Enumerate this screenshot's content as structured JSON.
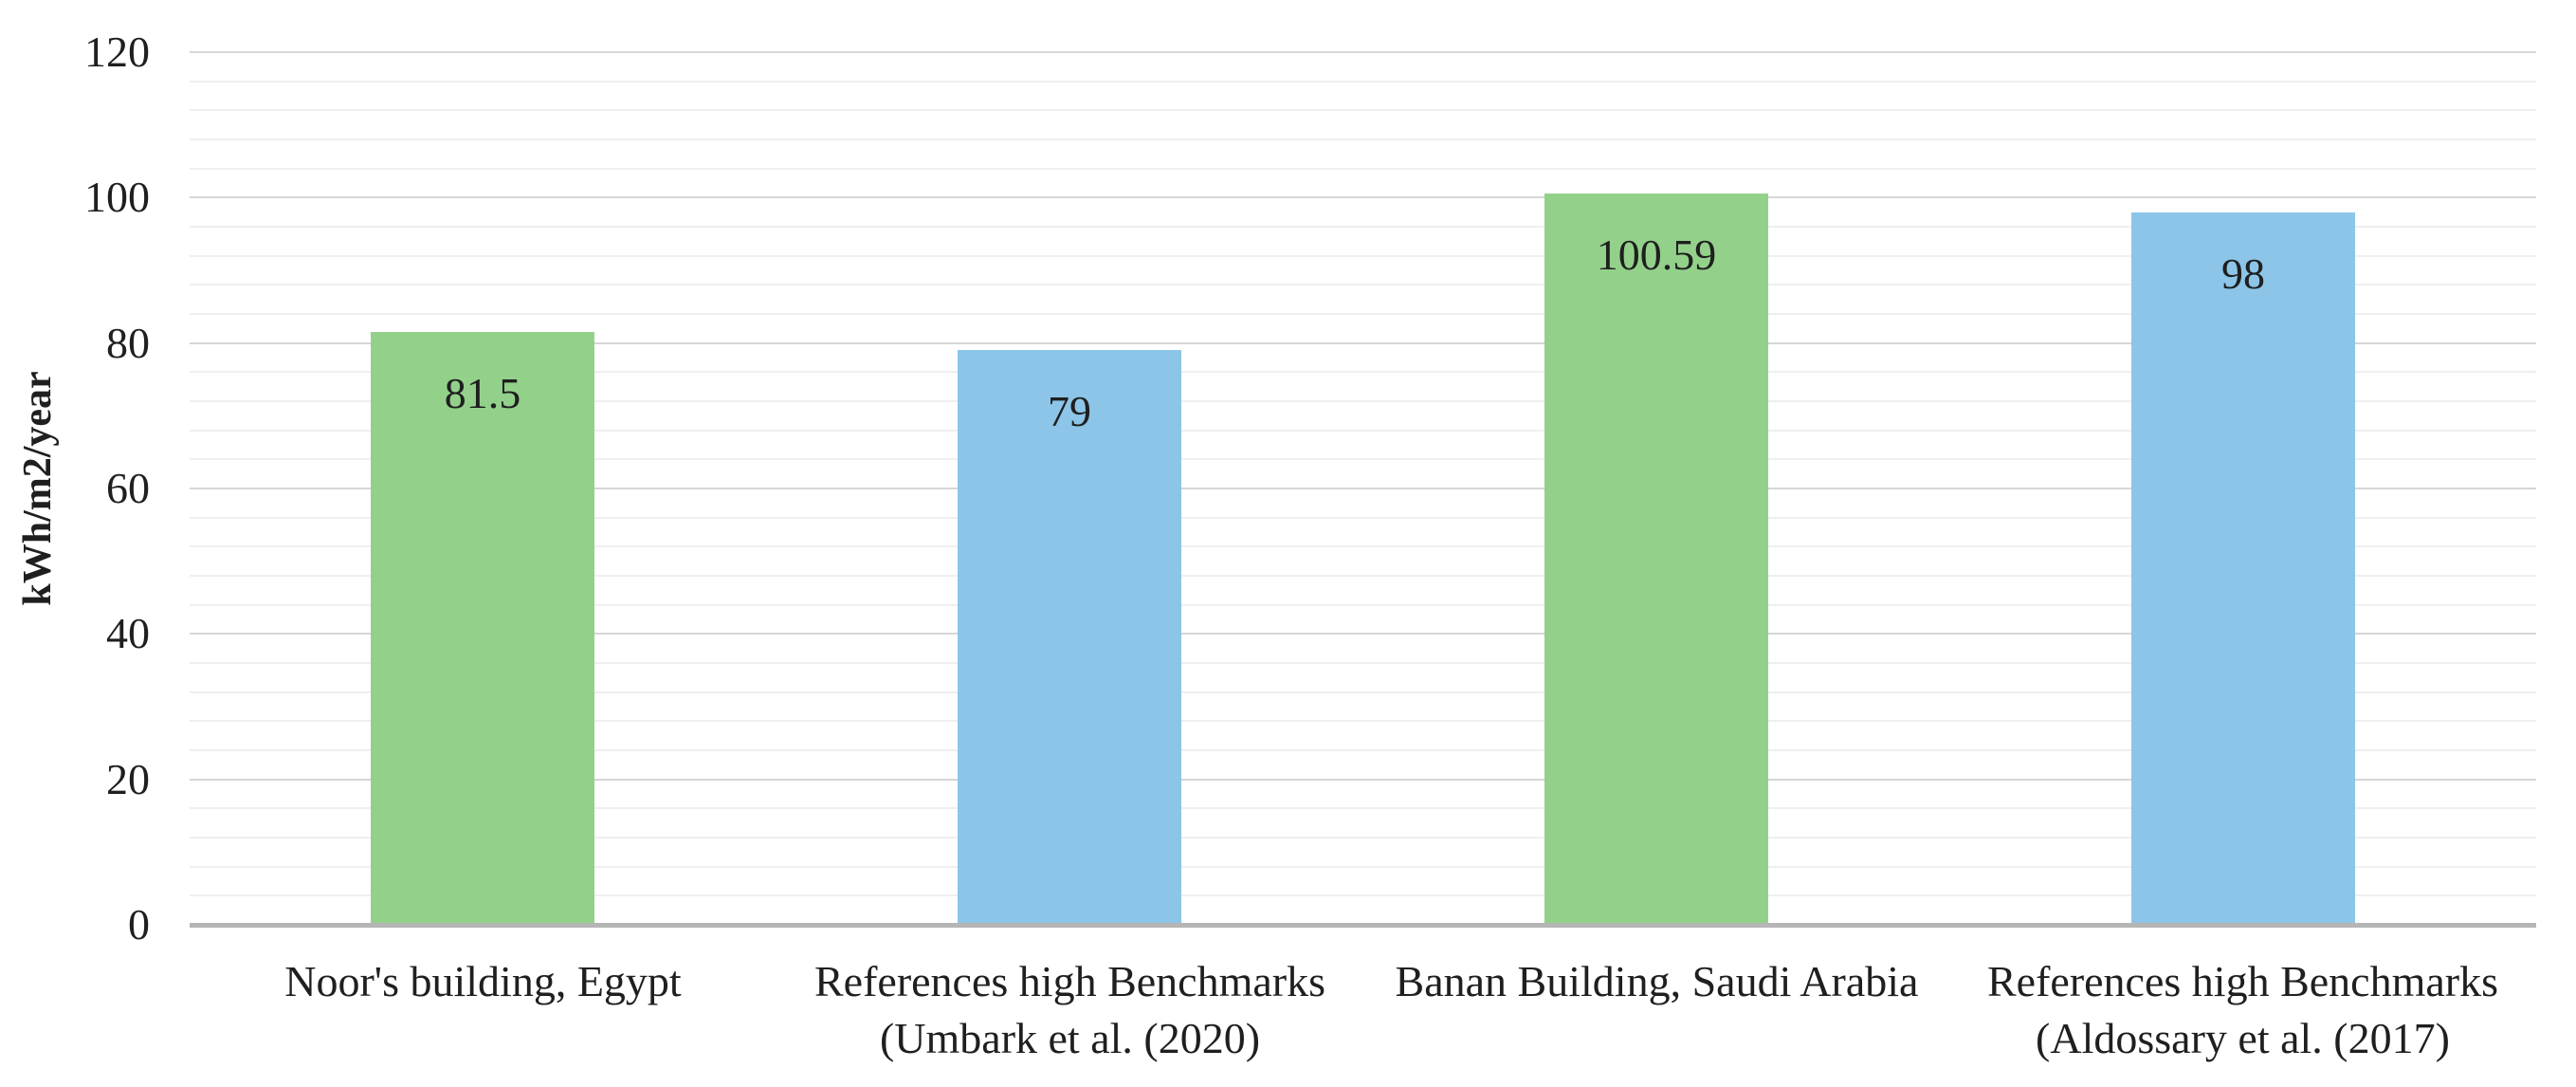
{
  "chart_data": {
    "type": "bar",
    "title": "",
    "xlabel": "",
    "ylabel": "kWh/m2/year",
    "ylim": [
      0,
      120
    ],
    "ytick_interval": 20,
    "yminor_interval": 4,
    "ytick_labels": [
      "0",
      "20",
      "40",
      "60",
      "80",
      "100",
      "120"
    ],
    "grid": "on",
    "legend": "none",
    "categories": [
      "Noor's building, Egypt",
      "References high Benchmarks (Umbark et al. (2020)",
      "Banan Building, Saudi Arabia",
      "References high Benchmarks (Aldossary et al. (2017)"
    ],
    "category_lines": [
      [
        "Noor's building, Egypt"
      ],
      [
        "References high Benchmarks",
        "(Umbark et al. (2020)"
      ],
      [
        "Banan Building, Saudi Arabia"
      ],
      [
        "References high Benchmarks",
        "(Aldossary et al. (2017)"
      ]
    ],
    "values": [
      81.5,
      79,
      100.59,
      98
    ],
    "value_labels": [
      "81.5",
      "79",
      "100.59",
      "98"
    ],
    "bar_colors": [
      "#93d18b",
      "#8cc5e8",
      "#93d18b",
      "#8cc5e8"
    ]
  },
  "colors": {
    "bar_green": "#93d18b",
    "bar_blue": "#8cc5e8",
    "gridline_major": "#d6d6d6",
    "gridline_minor": "#efefef",
    "axis_line": "#b5b5b5",
    "text": "#1f1f1f",
    "background": "#ffffff"
  }
}
